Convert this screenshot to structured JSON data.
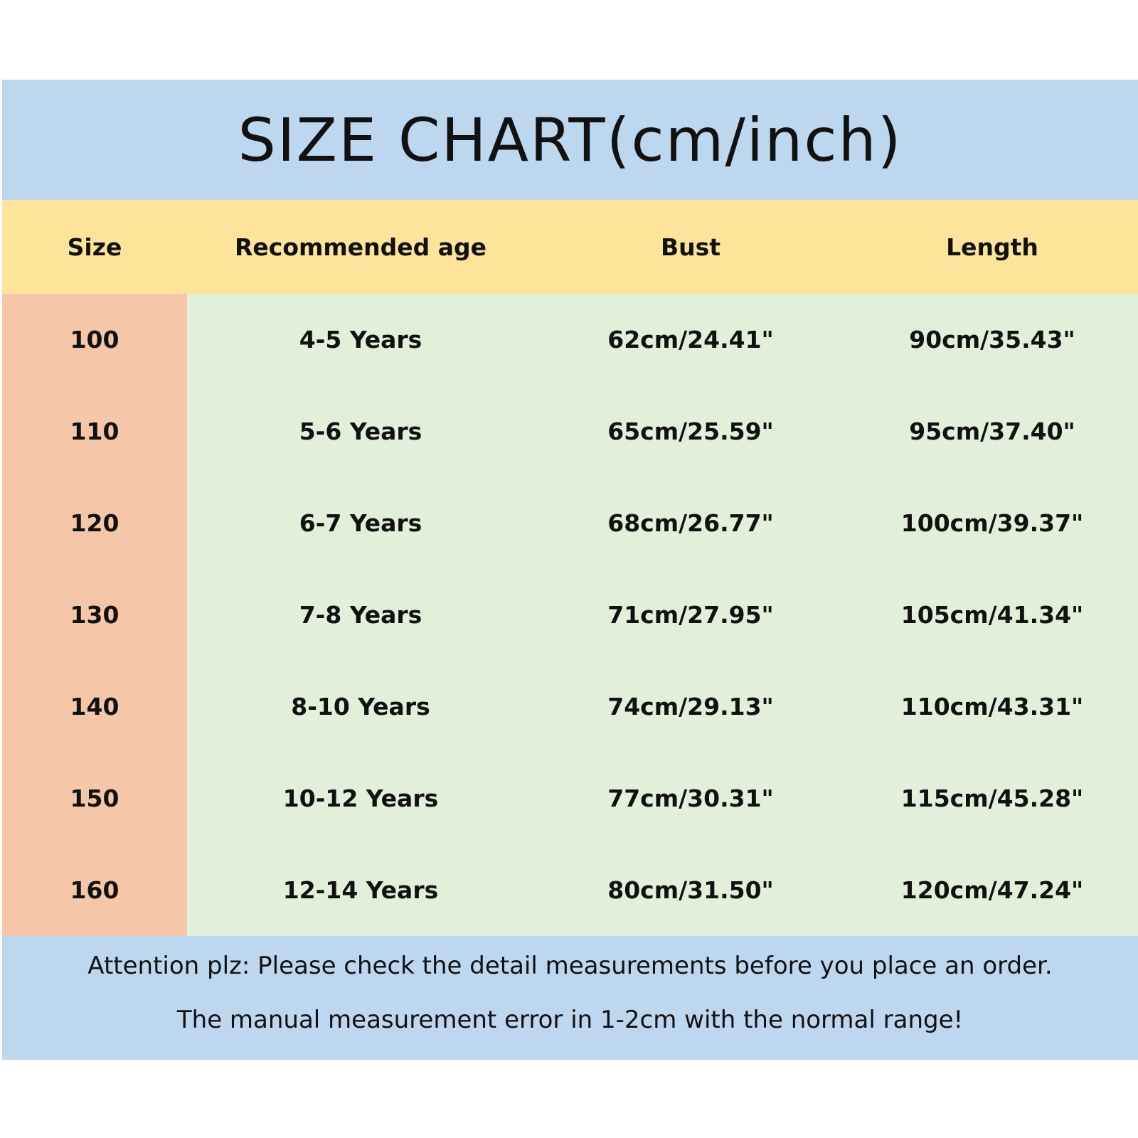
{
  "title": "SIZE CHART(cm/inch)",
  "table": {
    "headers": [
      "Size",
      "Recommended age",
      "Bust",
      "Length"
    ],
    "rows": [
      [
        "100",
        "4-5 Years",
        "62cm/24.41\"",
        "90cm/35.43\""
      ],
      [
        "110",
        "5-6 Years",
        "65cm/25.59\"",
        "95cm/37.40\""
      ],
      [
        "120",
        "6-7 Years",
        "68cm/26.77\"",
        "100cm/39.37\""
      ],
      [
        "130",
        "7-8 Years",
        "71cm/27.95\"",
        "105cm/41.34\""
      ],
      [
        "140",
        "8-10 Years",
        "74cm/29.13\"",
        "110cm/43.31\""
      ],
      [
        "150",
        "10-12 Years",
        "77cm/30.31\"",
        "115cm/45.28\""
      ],
      [
        "160",
        "12-14 Years",
        "80cm/31.50\"",
        "120cm/47.24\""
      ]
    ]
  },
  "footer": [
    "Attention plz:  Please check the detail measurements before you place an order.",
    "The manual measurement error in 1-2cm with the normal range!"
  ]
}
